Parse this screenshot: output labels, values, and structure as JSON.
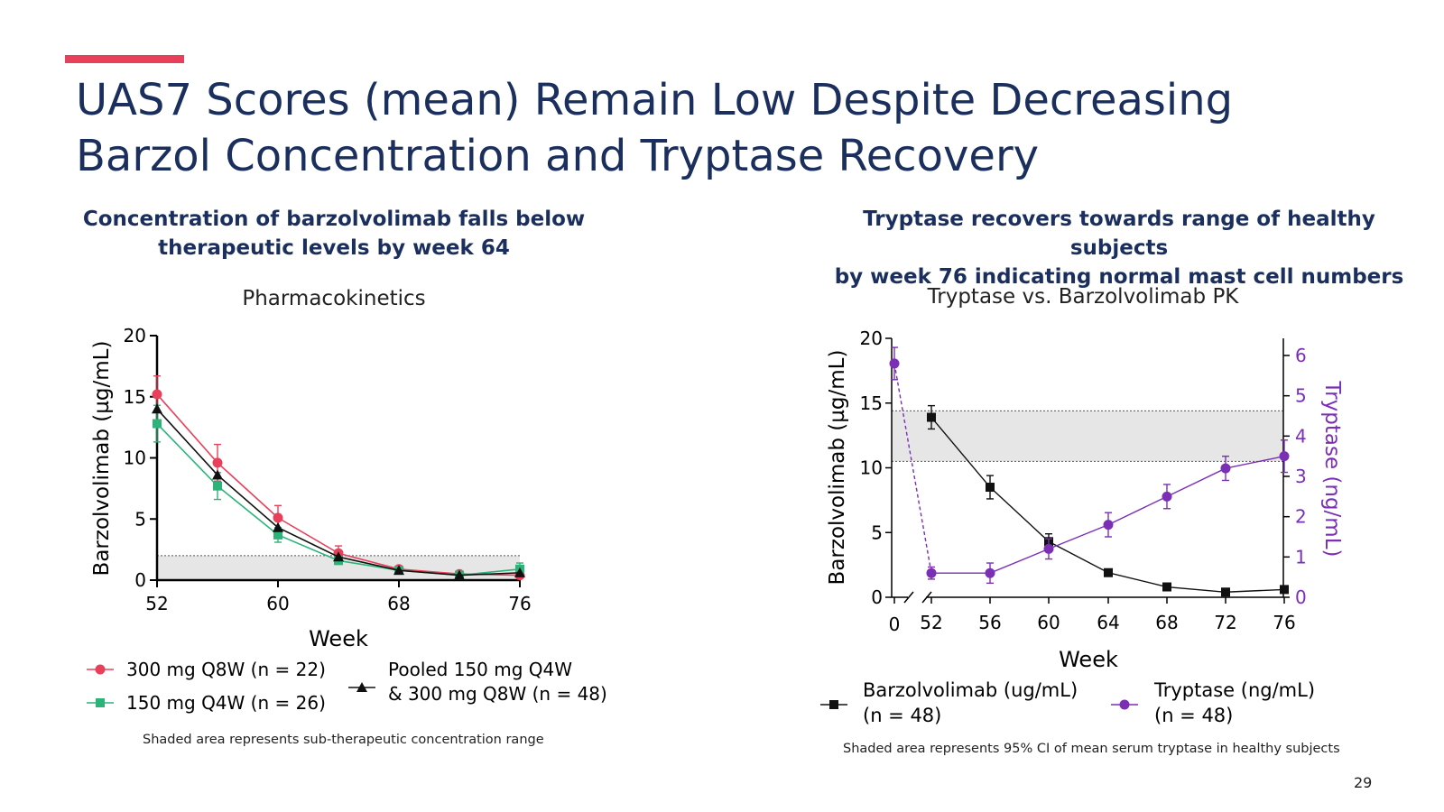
{
  "slide": {
    "title_line1": "UAS7 Scores (mean) Remain Low Despite Decreasing",
    "title_line2": "Barzol Concentration and Tryptase Recovery",
    "left_subhead_line1": "Concentration of barzolvolimab falls below",
    "left_subhead_line2": "therapeutic levels by week 64",
    "right_subhead_line1": "Tryptase recovers towards range of healthy subjects",
    "right_subhead_line2": "by week 76 indicating normal mast cell numbers",
    "page_number": "29",
    "accent_color": "#e8405a",
    "title_color": "#1b2f5e"
  },
  "chart_data": [
    {
      "type": "line",
      "title": "Pharmacokinetics",
      "xlabel": "Week",
      "ylabel": "Barzolvolimab (µg/mL)",
      "xlim": [
        52,
        76
      ],
      "ylim": [
        0,
        20
      ],
      "xticks": [
        52,
        60,
        68,
        76
      ],
      "yticks": [
        0,
        5,
        10,
        15,
        20
      ],
      "x": [
        52,
        56,
        60,
        64,
        68,
        72,
        76
      ],
      "shaded_range": [
        0,
        2
      ],
      "note": "Shaded area represents sub-therapeutic concentration range",
      "series": [
        {
          "name": "300 mg Q8W (n = 22)",
          "color": "#e8405a",
          "marker": "circle",
          "values": [
            15.2,
            9.6,
            5.1,
            2.2,
            0.9,
            0.5,
            0.4
          ],
          "err": [
            1.5,
            1.5,
            1.0,
            0.6,
            0.2,
            0.1,
            0.1
          ]
        },
        {
          "name": "150 mg Q4W (n = 26)",
          "color": "#2bb37a",
          "marker": "square",
          "values": [
            12.8,
            7.7,
            3.7,
            1.6,
            0.8,
            0.4,
            0.9
          ],
          "err": [
            1.5,
            1.1,
            0.6,
            0.3,
            0.2,
            0.1,
            0.5
          ]
        },
        {
          "name_line1": "Pooled 150 mg Q4W",
          "name_line2": "& 300 mg Q8W (n = 48)",
          "color": "#111111",
          "marker": "triangle",
          "values": [
            14.0,
            8.6,
            4.3,
            1.9,
            0.8,
            0.4,
            0.6
          ],
          "err": [
            0,
            0,
            0,
            0,
            0,
            0,
            0
          ]
        }
      ]
    },
    {
      "type": "line",
      "title": "Tryptase vs. Barzolvolimab PK",
      "xlabel": "Week",
      "ylabel": "Barzolvolimab (µg/mL)",
      "y2label": "Tryptase (ng/mL)",
      "ylim": [
        0,
        20
      ],
      "y2lim": [
        0,
        6
      ],
      "yticks": [
        0,
        5,
        10,
        15,
        20
      ],
      "y2ticks": [
        0,
        1,
        2,
        3,
        4,
        5,
        6
      ],
      "xticks_labels": [
        "0",
        "52",
        "56",
        "60",
        "64",
        "68",
        "72",
        "76"
      ],
      "axis_break": "between 0 and 52",
      "shaded_range_y": [
        10.5,
        14.4
      ],
      "note": "Shaded area represents 95% CI of mean serum tryptase in healthy subjects",
      "series": [
        {
          "name_line1": "Barzolvolimab (ug/mL)",
          "name_line2": "(n = 48)",
          "color": "#111111",
          "marker": "square",
          "axis": "left",
          "x": [
            52,
            56,
            60,
            64,
            68,
            72,
            76
          ],
          "values": [
            13.9,
            8.5,
            4.3,
            1.9,
            0.8,
            0.4,
            0.6
          ],
          "err": [
            0.9,
            0.9,
            0.6,
            0,
            0,
            0,
            0
          ]
        },
        {
          "name_line1": "Tryptase (ng/mL)",
          "name_line2": "(n = 48)",
          "color": "#7b2fb5",
          "marker": "circle",
          "axis": "right",
          "x": [
            0,
            52,
            56,
            60,
            64,
            68,
            72,
            76
          ],
          "values": [
            5.8,
            0.6,
            0.6,
            1.2,
            1.8,
            2.5,
            3.2,
            3.5
          ],
          "err": [
            0.4,
            0.15,
            0.25,
            0.25,
            0.3,
            0.3,
            0.3,
            0.4
          ]
        }
      ]
    }
  ]
}
